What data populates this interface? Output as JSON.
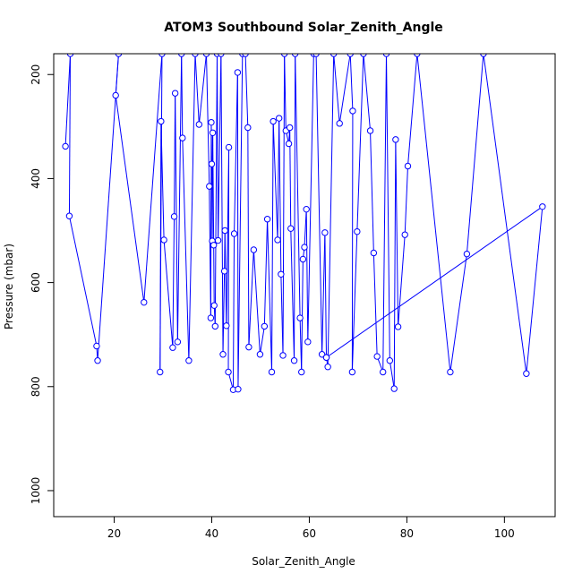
{
  "chart_data": {
    "type": "line",
    "title": "ATOM3 Southbound Solar_Zenith_Angle",
    "xlabel": "Solar_Zenith_Angle",
    "ylabel": "Pressure (mbar)",
    "xlim": [
      7.6,
      110.4
    ],
    "ylim": [
      1050,
      160
    ],
    "y_reversed": true,
    "xticks": [
      20,
      40,
      60,
      80,
      100
    ],
    "yticks": [
      200,
      400,
      600,
      800,
      1000
    ],
    "grid": false,
    "markers": "open-circle",
    "colors": {
      "series": "#0000ff",
      "axes": "#000000"
    },
    "series": [
      {
        "points": [
          [
            10.0,
            338
          ],
          [
            11.0,
            160
          ],
          [
            10.8,
            472
          ],
          [
            16.4,
            722
          ],
          [
            16.6,
            750
          ],
          [
            20.9,
            160
          ],
          [
            20.3,
            240
          ],
          [
            26.1,
            638
          ],
          [
            29.8,
            160
          ],
          [
            29.4,
            772
          ],
          [
            29.6,
            290
          ],
          [
            30.2,
            518
          ],
          [
            32.0,
            725
          ],
          [
            32.3,
            473
          ],
          [
            32.5,
            236
          ],
          [
            33.0,
            714
          ],
          [
            33.8,
            160
          ],
          [
            34.0,
            322
          ],
          [
            35.3,
            750
          ],
          [
            36.6,
            160
          ],
          [
            37.4,
            296
          ],
          [
            38.9,
            160
          ],
          [
            39.5,
            415
          ],
          [
            39.8,
            668
          ],
          [
            39.9,
            292
          ],
          [
            40.0,
            372
          ],
          [
            40.1,
            520
          ],
          [
            40.2,
            312
          ],
          [
            40.4,
            528
          ],
          [
            40.5,
            644
          ],
          [
            40.7,
            684
          ],
          [
            41.1,
            160
          ],
          [
            41.3,
            519
          ],
          [
            41.9,
            160
          ],
          [
            42.3,
            738
          ],
          [
            42.6,
            578
          ],
          [
            42.7,
            500
          ],
          [
            43.0,
            683
          ],
          [
            43.5,
            340
          ],
          [
            43.4,
            772
          ],
          [
            44.4,
            806
          ],
          [
            44.6,
            506
          ],
          [
            45.3,
            196
          ],
          [
            45.4,
            805
          ],
          [
            46.3,
            160
          ],
          [
            46.9,
            160
          ],
          [
            47.4,
            302
          ],
          [
            47.6,
            724
          ],
          [
            48.6,
            537
          ],
          [
            49.9,
            738
          ],
          [
            50.8,
            684
          ],
          [
            51.4,
            478
          ],
          [
            52.3,
            772
          ],
          [
            52.6,
            290
          ],
          [
            53.5,
            518
          ],
          [
            53.8,
            284
          ],
          [
            54.2,
            584
          ],
          [
            54.6,
            740
          ],
          [
            54.9,
            160
          ],
          [
            55.2,
            308
          ],
          [
            55.8,
            333
          ],
          [
            56.0,
            302
          ],
          [
            56.2,
            496
          ],
          [
            56.9,
            750
          ],
          [
            57.1,
            160
          ],
          [
            58.1,
            668
          ],
          [
            58.4,
            772
          ],
          [
            58.7,
            555
          ],
          [
            59.0,
            532
          ],
          [
            59.4,
            459
          ],
          [
            59.7,
            714
          ],
          [
            60.9,
            160
          ],
          [
            61.4,
            160
          ],
          [
            62.6,
            738
          ],
          [
            63.2,
            504
          ],
          [
            63.5,
            744
          ],
          [
            63.8,
            762
          ],
          [
            65.0,
            160
          ],
          [
            66.2,
            294
          ],
          [
            68.4,
            160
          ],
          [
            68.9,
            270
          ],
          [
            68.8,
            772
          ],
          [
            69.8,
            502
          ],
          [
            71.1,
            160
          ],
          [
            72.5,
            308
          ],
          [
            73.2,
            543
          ],
          [
            73.9,
            742
          ],
          [
            75.1,
            772
          ],
          [
            75.8,
            160
          ],
          [
            76.5,
            750
          ],
          [
            77.4,
            804
          ],
          [
            77.7,
            325
          ],
          [
            78.2,
            685
          ],
          [
            79.6,
            508
          ],
          [
            80.2,
            376
          ],
          [
            82.1,
            160
          ],
          [
            88.9,
            772
          ],
          [
            92.3,
            545
          ],
          [
            95.7,
            160
          ],
          [
            104.5,
            775
          ],
          [
            107.8,
            454
          ],
          [
            63.5,
            744
          ]
        ]
      }
    ]
  }
}
